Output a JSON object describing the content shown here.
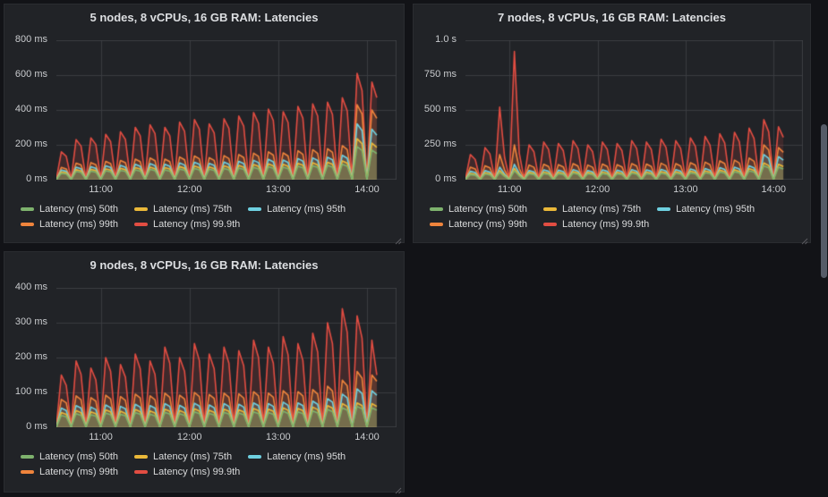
{
  "ui": {
    "scrollbar_visible": true,
    "grid_color": "#3a3c40",
    "panel_bg": "#212327",
    "page_bg": "#121317",
    "fill_opacity": 0.16
  },
  "chart_data": [
    {
      "type": "line",
      "title": "5 nodes, 8 vCPUs, 16 GB RAM: Latencies",
      "xlabel": "",
      "ylabel": "",
      "grid": true,
      "legend_position": "bottom-left",
      "x_start_min": 0,
      "x_step_min": 3.3333,
      "x_range_min": 230,
      "x_tick_minutes": [
        30,
        90,
        150,
        210
      ],
      "x_tick_labels": [
        "11:00",
        "12:00",
        "13:00",
        "14:00"
      ],
      "ylim": [
        0,
        800
      ],
      "y_tick_labels": [
        "0 ms",
        "200 ms",
        "400 ms",
        "600 ms",
        "800 ms"
      ],
      "series": [
        {
          "name": "Latency (ms) 50th",
          "color": "#7EB26D",
          "values": [
            1,
            36,
            32,
            1,
            47,
            41,
            1,
            49,
            43,
            1,
            51,
            45,
            1,
            53,
            47,
            1,
            56,
            49,
            1,
            59,
            52,
            1,
            56,
            49,
            1,
            61,
            54,
            1,
            64,
            56,
            1,
            60,
            53,
            1,
            64,
            56,
            1,
            67,
            59,
            1,
            71,
            62,
            1,
            74,
            65,
            1,
            72,
            63,
            1,
            77,
            68,
            1,
            79,
            70,
            1,
            82,
            72,
            1,
            88,
            77,
            1,
            190,
            167,
            1,
            170,
            150
          ]
        },
        {
          "name": "Latency (ms) 75th",
          "color": "#EAB839",
          "values": [
            1,
            44,
            39,
            1,
            57,
            50,
            1,
            59,
            52,
            1,
            62,
            55,
            1,
            65,
            57,
            1,
            69,
            61,
            1,
            72,
            63,
            1,
            69,
            61,
            1,
            75,
            66,
            1,
            78,
            69,
            1,
            73,
            64,
            1,
            79,
            70,
            1,
            82,
            72,
            1,
            87,
            77,
            1,
            91,
            80,
            1,
            88,
            77,
            1,
            94,
            83,
            1,
            97,
            85,
            1,
            100,
            88,
            1,
            108,
            95,
            1,
            235,
            207,
            1,
            210,
            185
          ]
        },
        {
          "name": "Latency (ms) 95th",
          "color": "#6ED0E0",
          "values": [
            2,
            55,
            48,
            2,
            72,
            63,
            2,
            74,
            65,
            2,
            79,
            70,
            2,
            82,
            72,
            2,
            88,
            77,
            2,
            92,
            81,
            2,
            88,
            77,
            2,
            96,
            84,
            2,
            100,
            88,
            2,
            93,
            82,
            2,
            101,
            89,
            2,
            105,
            92,
            2,
            111,
            98,
            2,
            117,
            103,
            2,
            113,
            99,
            2,
            121,
            106,
            2,
            125,
            110,
            2,
            129,
            114,
            2,
            140,
            123,
            2,
            320,
            282,
            2,
            290,
            255
          ]
        },
        {
          "name": "Latency (ms) 99th",
          "color": "#EF843C",
          "values": [
            2,
            70,
            62,
            2,
            95,
            84,
            2,
            98,
            86,
            2,
            105,
            92,
            2,
            110,
            97,
            2,
            118,
            104,
            2,
            124,
            109,
            2,
            118,
            104,
            2,
            130,
            114,
            2,
            136,
            120,
            2,
            126,
            111,
            2,
            138,
            121,
            2,
            144,
            127,
            2,
            152,
            134,
            2,
            160,
            141,
            2,
            154,
            136,
            2,
            166,
            146,
            2,
            172,
            151,
            2,
            178,
            157,
            2,
            195,
            172,
            2,
            430,
            378,
            2,
            400,
            352
          ]
        },
        {
          "name": "Latency (ms) 99.9th",
          "color": "#E24D42",
          "values": [
            4,
            160,
            134,
            4,
            230,
            193,
            4,
            240,
            202,
            4,
            260,
            218,
            4,
            275,
            231,
            4,
            300,
            252,
            4,
            315,
            265,
            4,
            300,
            252,
            4,
            330,
            277,
            4,
            345,
            290,
            4,
            320,
            269,
            4,
            350,
            294,
            4,
            365,
            307,
            4,
            385,
            323,
            4,
            405,
            340,
            4,
            390,
            328,
            4,
            420,
            353,
            4,
            435,
            365,
            4,
            445,
            374,
            4,
            470,
            395,
            4,
            610,
            512,
            4,
            560,
            470
          ]
        }
      ]
    },
    {
      "type": "line",
      "title": "7 nodes, 8 vCPUs, 16 GB RAM: Latencies",
      "xlabel": "",
      "ylabel": "",
      "grid": true,
      "legend_position": "bottom-left",
      "x_start_min": 0,
      "x_step_min": 3.3333,
      "x_range_min": 230,
      "x_tick_minutes": [
        30,
        90,
        150,
        210
      ],
      "x_tick_labels": [
        "11:00",
        "12:00",
        "13:00",
        "14:00"
      ],
      "ylim": [
        0,
        1000
      ],
      "y_tick_labels": [
        "0 ms",
        "250 ms",
        "500 ms",
        "750 ms",
        "1.0 s"
      ],
      "series": [
        {
          "name": "Latency (ms) 50th",
          "color": "#7EB26D",
          "values": [
            1,
            36,
            31,
            1,
            40,
            34,
            1,
            52,
            24,
            1,
            64,
            27,
            1,
            42,
            36,
            1,
            44,
            37,
            1,
            42,
            36,
            1,
            46,
            39,
            1,
            42,
            36,
            1,
            44,
            37,
            1,
            42,
            36,
            1,
            46,
            39,
            1,
            44,
            37,
            1,
            46,
            39,
            1,
            46,
            39,
            1,
            49,
            42,
            1,
            50,
            43,
            1,
            54,
            46,
            1,
            57,
            48,
            1,
            63,
            54,
            1,
            100,
            85,
            1,
            90,
            77
          ]
        },
        {
          "name": "Latency (ms) 75th",
          "color": "#EAB839",
          "values": [
            1,
            45,
            38,
            1,
            50,
            43,
            1,
            65,
            30,
            1,
            80,
            34,
            1,
            52,
            44,
            1,
            55,
            47,
            1,
            53,
            45,
            1,
            57,
            48,
            1,
            52,
            44,
            1,
            55,
            47,
            1,
            53,
            45,
            1,
            57,
            48,
            1,
            55,
            47,
            1,
            58,
            49,
            1,
            57,
            48,
            1,
            61,
            52,
            1,
            63,
            54,
            1,
            68,
            58,
            1,
            71,
            60,
            1,
            79,
            67,
            1,
            120,
            102,
            1,
            110,
            94
          ]
        },
        {
          "name": "Latency (ms) 95th",
          "color": "#6ED0E0",
          "values": [
            1,
            60,
            51,
            1,
            65,
            55,
            1,
            90,
            40,
            1,
            110,
            45,
            1,
            66,
            56,
            1,
            70,
            60,
            1,
            68,
            58,
            1,
            72,
            61,
            1,
            66,
            56,
            1,
            70,
            60,
            1,
            68,
            58,
            1,
            72,
            61,
            1,
            70,
            60,
            1,
            74,
            63,
            1,
            72,
            61,
            1,
            77,
            65,
            1,
            80,
            68,
            1,
            86,
            73,
            1,
            90,
            77,
            1,
            100,
            85,
            1,
            180,
            153,
            1,
            165,
            140
          ]
        },
        {
          "name": "Latency (ms) 99th",
          "color": "#EF843C",
          "values": [
            2,
            90,
            77,
            2,
            100,
            85,
            2,
            180,
            70,
            2,
            250,
            80,
            2,
            105,
            89,
            2,
            110,
            94,
            2,
            108,
            92,
            2,
            115,
            98,
            2,
            105,
            89,
            2,
            112,
            95,
            2,
            108,
            92,
            2,
            115,
            98,
            2,
            112,
            95,
            2,
            118,
            100,
            2,
            115,
            98,
            2,
            122,
            104,
            2,
            126,
            107,
            2,
            135,
            115,
            2,
            140,
            119,
            2,
            155,
            132,
            2,
            250,
            213,
            2,
            230,
            196
          ]
        },
        {
          "name": "Latency (ms) 99.9th",
          "color": "#E24D42",
          "values": [
            4,
            180,
            144,
            4,
            230,
            184,
            4,
            520,
            160,
            4,
            920,
            190,
            4,
            250,
            200,
            4,
            270,
            216,
            4,
            260,
            208,
            4,
            280,
            224,
            4,
            250,
            200,
            4,
            270,
            216,
            4,
            260,
            208,
            4,
            280,
            224,
            4,
            270,
            216,
            4,
            290,
            232,
            4,
            280,
            224,
            4,
            300,
            240,
            4,
            310,
            248,
            4,
            330,
            264,
            4,
            340,
            272,
            4,
            370,
            296,
            4,
            430,
            344,
            4,
            380,
            304
          ]
        }
      ]
    },
    {
      "type": "line",
      "title": "9 nodes, 8 vCPUs, 16 GB RAM: Latencies",
      "xlabel": "",
      "ylabel": "",
      "grid": true,
      "legend_position": "bottom-left",
      "x_start_min": 0,
      "x_step_min": 3.3333,
      "x_range_min": 230,
      "x_tick_minutes": [
        30,
        90,
        150,
        210
      ],
      "x_tick_labels": [
        "11:00",
        "12:00",
        "13:00",
        "14:00"
      ],
      "ylim": [
        0,
        400
      ],
      "y_tick_labels": [
        "0 ms",
        "100 ms",
        "200 ms",
        "300 ms",
        "400 ms"
      ],
      "series": [
        {
          "name": "Latency (ms) 50th",
          "color": "#7EB26D",
          "values": [
            1,
            34,
            30,
            1,
            39,
            34,
            1,
            36,
            32,
            1,
            41,
            36,
            1,
            37,
            33,
            1,
            42,
            37,
            1,
            38,
            33,
            1,
            43,
            38,
            1,
            39,
            34,
            1,
            44,
            39,
            1,
            40,
            35,
            1,
            43,
            38,
            1,
            41,
            36,
            1,
            44,
            39,
            1,
            42,
            37,
            1,
            46,
            40,
            1,
            44,
            39,
            1,
            47,
            41,
            1,
            51,
            45,
            1,
            56,
            49,
            1,
            60,
            53,
            1,
            56,
            49
          ]
        },
        {
          "name": "Latency (ms) 75th",
          "color": "#EAB839",
          "values": [
            1,
            42,
            37,
            1,
            48,
            42,
            1,
            44,
            39,
            1,
            50,
            44,
            1,
            46,
            40,
            1,
            51,
            45,
            1,
            47,
            41,
            1,
            52,
            46,
            1,
            48,
            42,
            1,
            53,
            47,
            1,
            49,
            43,
            1,
            52,
            46,
            1,
            50,
            44,
            1,
            54,
            48,
            1,
            52,
            46,
            1,
            56,
            49,
            1,
            54,
            48,
            1,
            58,
            51,
            1,
            62,
            55,
            1,
            68,
            60,
            1,
            70,
            62,
            1,
            68,
            60
          ]
        },
        {
          "name": "Latency (ms) 95th",
          "color": "#6ED0E0",
          "values": [
            1,
            55,
            48,
            1,
            62,
            55,
            1,
            58,
            51,
            1,
            64,
            56,
            1,
            60,
            53,
            1,
            66,
            58,
            1,
            62,
            55,
            1,
            68,
            60,
            1,
            63,
            55,
            1,
            69,
            61,
            1,
            64,
            56,
            1,
            68,
            60,
            1,
            66,
            58,
            1,
            70,
            62,
            1,
            68,
            60,
            1,
            72,
            63,
            1,
            70,
            62,
            1,
            75,
            66,
            1,
            82,
            72,
            1,
            95,
            84,
            1,
            110,
            97,
            1,
            105,
            92
          ]
        },
        {
          "name": "Latency (ms) 99th",
          "color": "#EF843C",
          "values": [
            2,
            80,
            70,
            2,
            90,
            79,
            2,
            85,
            75,
            2,
            92,
            81,
            2,
            88,
            77,
            2,
            95,
            84,
            2,
            90,
            79,
            2,
            98,
            86,
            2,
            92,
            81,
            2,
            100,
            88,
            2,
            94,
            83,
            2,
            98,
            86,
            2,
            96,
            84,
            2,
            102,
            90,
            2,
            98,
            86,
            2,
            105,
            92,
            2,
            102,
            90,
            2,
            108,
            95,
            2,
            118,
            104,
            2,
            135,
            119,
            2,
            160,
            141,
            2,
            150,
            132
          ]
        },
        {
          "name": "Latency (ms) 99.9th",
          "color": "#E24D42",
          "values": [
            4,
            150,
            120,
            4,
            190,
            152,
            4,
            170,
            136,
            4,
            200,
            160,
            4,
            180,
            144,
            4,
            210,
            168,
            4,
            190,
            152,
            4,
            230,
            184,
            4,
            200,
            160,
            4,
            240,
            192,
            4,
            210,
            168,
            4,
            230,
            184,
            4,
            220,
            176,
            4,
            250,
            200,
            4,
            230,
            184,
            4,
            260,
            208,
            4,
            240,
            192,
            4,
            270,
            216,
            4,
            300,
            240,
            4,
            340,
            272,
            4,
            320,
            256,
            4,
            250,
            150
          ]
        }
      ]
    }
  ]
}
